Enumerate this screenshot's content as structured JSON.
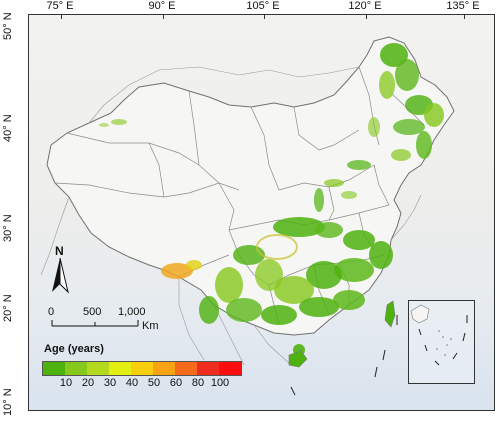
{
  "map": {
    "lon_ticks": [
      "75° E",
      "90° E",
      "105° E",
      "120° E",
      "135° E"
    ],
    "lat_ticks": [
      "50° N",
      "40° N",
      "30° N",
      "20° N",
      "10° N"
    ]
  },
  "north_arrow": {
    "label": "N"
  },
  "scale_bar": {
    "labels": [
      "0",
      "500",
      "1,000"
    ],
    "unit": "Km"
  },
  "legend": {
    "title": "Age (years)",
    "classes": [
      "10",
      "20",
      "30",
      "40",
      "50",
      "60",
      "80",
      "100"
    ],
    "colors": [
      "#4eb20e",
      "#86c81b",
      "#b2d91d",
      "#e3ef12",
      "#f7cf0f",
      "#f8a315",
      "#f56a1b",
      "#ef2d1f",
      "#fb0f0f"
    ]
  },
  "colors": {
    "forest_young": "#4eb20e",
    "forest_light": "#86c81b",
    "forest_old": "#f0a820",
    "boundary": "#777777",
    "ocean": "#dde6ef"
  }
}
